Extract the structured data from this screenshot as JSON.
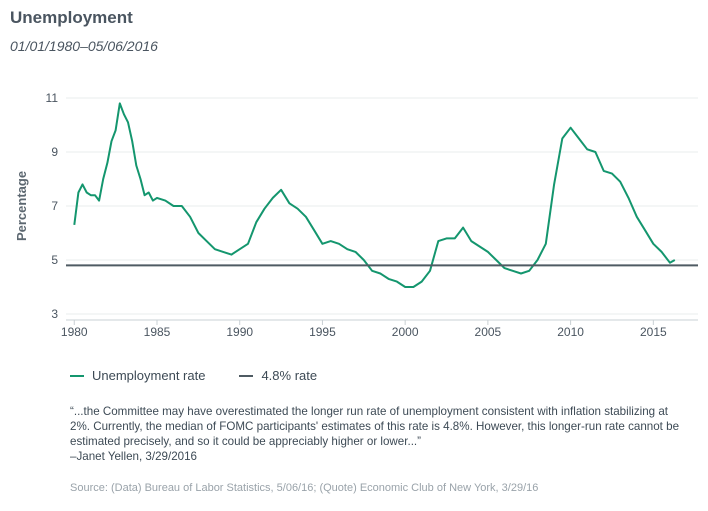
{
  "title": "Unemployment",
  "subtitle": "01/01/1980–05/06/2016",
  "legend": [
    {
      "label": "Unemployment rate",
      "color": "#14966e"
    },
    {
      "label": "4.8% rate",
      "color": "#4f5b63"
    }
  ],
  "quote": {
    "text": "“...the Committee may have overestimated the longer run rate of unemployment consistent with inflation stabilizing at 2%. Currently, the median of FOMC participants' estimates of this rate is 4.8%. However, this longer-run rate cannot be estimated precisely, and so it could be appreciably higher or lower...”",
    "attribution": "–Janet Yellen, 3/29/2016"
  },
  "source": "Source:  (Data) Bureau of Labor Statistics, 5/06/16; (Quote) Economic Club of New York, 3/29/16",
  "chart_data": {
    "type": "line",
    "ylabel": "Percentage",
    "xlim": [
      1979.5,
      2017.7
    ],
    "ylim": [
      3,
      11
    ],
    "yticks": [
      3,
      5,
      7,
      9,
      11
    ],
    "xticks": [
      1980,
      1985,
      1990,
      1995,
      2000,
      2005,
      2010,
      2015
    ],
    "grid": true,
    "legend_position": "bottom-left",
    "series": [
      {
        "name": "Unemployment rate",
        "color": "#14966e",
        "x": [
          1980.0,
          1980.25,
          1980.5,
          1980.75,
          1981.0,
          1981.25,
          1981.5,
          1981.75,
          1982.0,
          1982.25,
          1982.5,
          1982.75,
          1983.0,
          1983.25,
          1983.5,
          1983.75,
          1984.0,
          1984.25,
          1984.5,
          1984.75,
          1985.0,
          1985.5,
          1986.0,
          1986.5,
          1987.0,
          1987.5,
          1988.0,
          1988.5,
          1989.0,
          1989.5,
          1990.0,
          1990.5,
          1991.0,
          1991.5,
          1992.0,
          1992.5,
          1993.0,
          1993.5,
          1994.0,
          1994.5,
          1995.0,
          1995.5,
          1996.0,
          1996.5,
          1997.0,
          1997.5,
          1998.0,
          1998.5,
          1999.0,
          1999.5,
          2000.0,
          2000.5,
          2001.0,
          2001.5,
          2002.0,
          2002.5,
          2003.0,
          2003.5,
          2004.0,
          2004.5,
          2005.0,
          2005.5,
          2006.0,
          2006.5,
          2007.0,
          2007.5,
          2008.0,
          2008.5,
          2009.0,
          2009.5,
          2010.0,
          2010.5,
          2011.0,
          2011.5,
          2012.0,
          2012.5,
          2013.0,
          2013.5,
          2014.0,
          2014.5,
          2015.0,
          2015.5,
          2016.0,
          2016.3
        ],
        "y": [
          6.3,
          7.5,
          7.8,
          7.5,
          7.4,
          7.4,
          7.2,
          8.0,
          8.6,
          9.4,
          9.8,
          10.8,
          10.4,
          10.1,
          9.4,
          8.5,
          8.0,
          7.4,
          7.5,
          7.2,
          7.3,
          7.2,
          7.0,
          7.0,
          6.6,
          6.0,
          5.7,
          5.4,
          5.3,
          5.2,
          5.4,
          5.6,
          6.4,
          6.9,
          7.3,
          7.6,
          7.1,
          6.9,
          6.6,
          6.1,
          5.6,
          5.7,
          5.6,
          5.4,
          5.3,
          5.0,
          4.6,
          4.5,
          4.3,
          4.2,
          4.0,
          4.0,
          4.2,
          4.6,
          5.7,
          5.8,
          5.8,
          6.2,
          5.7,
          5.5,
          5.3,
          5.0,
          4.7,
          4.6,
          4.5,
          4.6,
          5.0,
          5.6,
          7.8,
          9.5,
          9.9,
          9.5,
          9.1,
          9.0,
          8.3,
          8.2,
          7.9,
          7.3,
          6.6,
          6.1,
          5.6,
          5.3,
          4.9,
          5.0
        ]
      },
      {
        "name": "4.8% rate",
        "color": "#4f5b63",
        "x": [
          1979.5,
          2017.7
        ],
        "y": [
          4.8,
          4.8
        ]
      }
    ]
  }
}
